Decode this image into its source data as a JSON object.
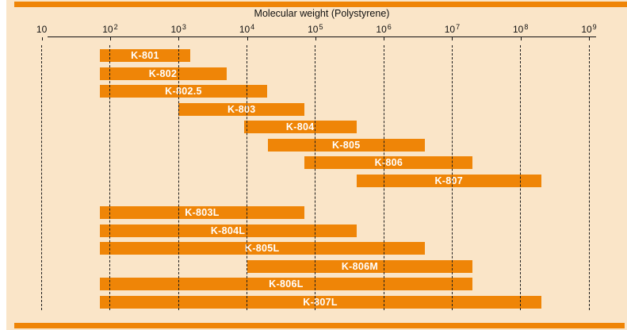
{
  "page": {
    "background": "#FFFFFF"
  },
  "panel": {
    "background": "#FAE5C8",
    "accent_strip_color": "#EF8507"
  },
  "chart_data": {
    "type": "range_bar",
    "orientation": "horizontal",
    "title": "Molecular weight (Polystyrene)",
    "x_scale": "log10",
    "x_range": [
      10,
      1000000000
    ],
    "tick_exponents": [
      1,
      2,
      3,
      4,
      5,
      6,
      7,
      8,
      9
    ],
    "tick_base": "10",
    "grid": "dashed-vertical",
    "legend": "none",
    "bar_color": "#EF8507",
    "bar_label_color": "#FFFFFF",
    "axis_color": "#111111",
    "series": [
      {
        "name": "K-801",
        "group": 1,
        "range": [
          70,
          1500
        ]
      },
      {
        "name": "K-802",
        "group": 1,
        "range": [
          70,
          5000
        ]
      },
      {
        "name": "K-802.5",
        "group": 1,
        "range": [
          70,
          20000
        ]
      },
      {
        "name": "K-803",
        "group": 1,
        "range": [
          1000,
          70000
        ]
      },
      {
        "name": "K-804",
        "group": 1,
        "range": [
          9000,
          400000
        ]
      },
      {
        "name": "K-805",
        "group": 1,
        "range": [
          20000,
          4000000
        ]
      },
      {
        "name": "K-806",
        "group": 1,
        "range": [
          70000,
          20000000
        ]
      },
      {
        "name": "K-807",
        "group": 1,
        "range": [
          400000,
          200000000
        ]
      },
      {
        "name": "K-803L",
        "group": 2,
        "range": [
          70,
          70000
        ]
      },
      {
        "name": "K-804L",
        "group": 2,
        "range": [
          70,
          400000
        ]
      },
      {
        "name": "K-805L",
        "group": 2,
        "range": [
          70,
          4000000
        ]
      },
      {
        "name": "K-806M",
        "group": 2,
        "range": [
          10000,
          20000000
        ]
      },
      {
        "name": "K-806L",
        "group": 2,
        "range": [
          70,
          20000000
        ]
      },
      {
        "name": "K-807L",
        "group": 2,
        "range": [
          70,
          200000000
        ]
      }
    ]
  }
}
